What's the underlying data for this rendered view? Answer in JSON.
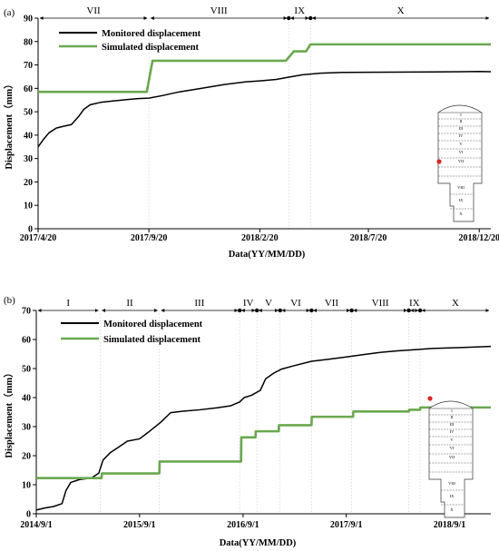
{
  "chart_data": [
    {
      "panel_label": "(a)",
      "type": "line",
      "xlabel": "Data(YY/MM/DD)",
      "ylabel": "Displacement（mm）",
      "ylim": [
        0,
        90
      ],
      "yticks": [
        "0",
        "10",
        "20",
        "30",
        "40",
        "50",
        "60",
        "70",
        "80",
        "90"
      ],
      "xlim": [
        "2017-04-20",
        "2019-01-05"
      ],
      "xticks": [
        {
          "date": "2017-04-20",
          "label": "2017/4/20"
        },
        {
          "date": "2017-09-20",
          "label": "2017/9/20"
        },
        {
          "date": "2018-02-20",
          "label": "2018/2/20"
        },
        {
          "date": "2018-07-20",
          "label": "2018/7/20"
        },
        {
          "date": "2018-12-20",
          "label": "2018/12/20"
        }
      ],
      "grid": false,
      "legend_position": "top-left",
      "stages": [
        {
          "label": "VII",
          "start": "2017-04-20",
          "end": "2017-09-20"
        },
        {
          "label": "VIII",
          "start": "2017-09-20",
          "end": "2018-04-01"
        },
        {
          "label": "IX",
          "start": "2018-04-01",
          "end": "2018-05-01"
        },
        {
          "label": "X",
          "start": "2018-05-01",
          "end": "2019-01-05"
        }
      ],
      "series": [
        {
          "name": "Monitored displacement",
          "color": "#000000",
          "points": [
            [
              "2017-04-20",
              35
            ],
            [
              "2017-04-27",
              38
            ],
            [
              "2017-05-05",
              41
            ],
            [
              "2017-05-15",
              43
            ],
            [
              "2017-05-25",
              43.8
            ],
            [
              "2017-06-05",
              44.5
            ],
            [
              "2017-06-15",
              48
            ],
            [
              "2017-06-22",
              51
            ],
            [
              "2017-07-01",
              53
            ],
            [
              "2017-07-15",
              54
            ],
            [
              "2017-08-01",
              54.6
            ],
            [
              "2017-08-20",
              55.2
            ],
            [
              "2017-09-05",
              55.6
            ],
            [
              "2017-09-20",
              55.8
            ],
            [
              "2017-10-10",
              57
            ],
            [
              "2017-11-01",
              58.5
            ],
            [
              "2017-12-01",
              60
            ],
            [
              "2018-01-01",
              61.6
            ],
            [
              "2018-02-01",
              62.8
            ],
            [
              "2018-02-20",
              63.2
            ],
            [
              "2018-03-15",
              63.8
            ],
            [
              "2018-04-01",
              64.8
            ],
            [
              "2018-04-20",
              65.8
            ],
            [
              "2018-05-15",
              66.5
            ],
            [
              "2018-06-15",
              66.8
            ],
            [
              "2018-08-15",
              66.9
            ],
            [
              "2018-10-15",
              67
            ],
            [
              "2018-12-20",
              67.2
            ],
            [
              "2019-01-05",
              67.1
            ]
          ]
        },
        {
          "name": "Simulated displacement",
          "color": "#6aa84f",
          "points": [
            [
              "2017-04-20",
              58.5
            ],
            [
              "2017-09-17",
              58.5
            ],
            [
              "2017-09-25",
              71.8
            ],
            [
              "2018-03-28",
              71.8
            ],
            [
              "2018-04-08",
              75.8
            ],
            [
              "2018-04-25",
              75.8
            ],
            [
              "2018-05-01",
              78.8
            ],
            [
              "2019-01-05",
              78.8
            ]
          ]
        }
      ]
    },
    {
      "panel_label": "(b)",
      "type": "line",
      "xlabel": "Data(YY/MM/DD)",
      "ylabel": "Displacement（mm）",
      "ylim": [
        0,
        70
      ],
      "yticks": [
        "0",
        "10",
        "20",
        "30",
        "40",
        "50",
        "60",
        "70"
      ],
      "xlim": [
        "2014-09-01",
        "2019-01-25"
      ],
      "xticks": [
        {
          "date": "2014-09-01",
          "label": "2014/9/1"
        },
        {
          "date": "2015-09-01",
          "label": "2015/9/1"
        },
        {
          "date": "2016-09-01",
          "label": "2016/9/1"
        },
        {
          "date": "2017-09-01",
          "label": "2017/9/1"
        },
        {
          "date": "2018-09-01",
          "label": "2018/9/1"
        }
      ],
      "grid": false,
      "legend_position": "top-left",
      "stages": [
        {
          "label": "I",
          "start": "2014-09-01",
          "end": "2015-04-15"
        },
        {
          "label": "II",
          "start": "2015-04-15",
          "end": "2015-11-10"
        },
        {
          "label": "III",
          "start": "2015-11-10",
          "end": "2016-08-20"
        },
        {
          "label": "IV",
          "start": "2016-08-20",
          "end": "2016-10-20"
        },
        {
          "label": "V",
          "start": "2016-10-20",
          "end": "2017-01-10"
        },
        {
          "label": "VI",
          "start": "2017-01-10",
          "end": "2017-05-01"
        },
        {
          "label": "VII",
          "start": "2017-05-01",
          "end": "2017-09-20"
        },
        {
          "label": "VIII",
          "start": "2017-09-20",
          "end": "2018-04-10"
        },
        {
          "label": "IX",
          "start": "2018-04-10",
          "end": "2018-05-20"
        },
        {
          "label": "X",
          "start": "2018-05-20",
          "end": "2019-01-25"
        }
      ],
      "series": [
        {
          "name": "Monitored displacement",
          "color": "#000000",
          "points": [
            [
              "2014-09-01",
              1.3
            ],
            [
              "2014-10-01",
              2
            ],
            [
              "2014-11-01",
              2.5
            ],
            [
              "2014-12-01",
              3.5
            ],
            [
              "2014-12-15",
              8
            ],
            [
              "2015-01-01",
              10.8
            ],
            [
              "2015-02-01",
              11.8
            ],
            [
              "2015-03-15",
              12.3
            ],
            [
              "2015-04-10",
              14
            ],
            [
              "2015-04-25",
              18.5
            ],
            [
              "2015-05-20",
              21
            ],
            [
              "2015-06-20",
              23
            ],
            [
              "2015-07-20",
              25
            ],
            [
              "2015-09-01",
              25.8
            ],
            [
              "2015-10-01",
              28
            ],
            [
              "2015-11-15",
              31.5
            ],
            [
              "2015-12-20",
              34.8
            ],
            [
              "2016-02-01",
              35.3
            ],
            [
              "2016-04-01",
              35.8
            ],
            [
              "2016-06-01",
              36.5
            ],
            [
              "2016-07-20",
              37.2
            ],
            [
              "2016-08-20",
              38.5
            ],
            [
              "2016-09-05",
              40
            ],
            [
              "2016-10-01",
              40.8
            ],
            [
              "2016-11-01",
              42.5
            ],
            [
              "2016-11-20",
              46.5
            ],
            [
              "2016-12-20",
              48.5
            ],
            [
              "2017-01-15",
              49.8
            ],
            [
              "2017-03-01",
              51
            ],
            [
              "2017-05-01",
              52.5
            ],
            [
              "2017-07-01",
              53.2
            ],
            [
              "2017-09-01",
              54
            ],
            [
              "2017-11-01",
              54.8
            ],
            [
              "2018-01-01",
              55.6
            ],
            [
              "2018-03-01",
              56.1
            ],
            [
              "2018-05-01",
              56.5
            ],
            [
              "2018-07-01",
              56.9
            ],
            [
              "2018-09-01",
              57.1
            ],
            [
              "2018-11-01",
              57.3
            ],
            [
              "2019-01-25",
              57.6
            ]
          ]
        },
        {
          "name": "Simulated displacement",
          "color": "#6aa84f",
          "points": [
            [
              "2014-09-01",
              12.3
            ],
            [
              "2015-04-20",
              12.3
            ],
            [
              "2015-04-21",
              13.9
            ],
            [
              "2015-11-10",
              13.9
            ],
            [
              "2015-11-11",
              18
            ],
            [
              "2016-08-25",
              18
            ],
            [
              "2016-08-26",
              26.3
            ],
            [
              "2016-10-15",
              26.3
            ],
            [
              "2016-10-16",
              28.4
            ],
            [
              "2017-01-05",
              28.4
            ],
            [
              "2017-01-06",
              30.5
            ],
            [
              "2017-05-01",
              30.5
            ],
            [
              "2017-05-02",
              33.4
            ],
            [
              "2017-09-25",
              33.4
            ],
            [
              "2017-09-26",
              35.2
            ],
            [
              "2018-04-10",
              35.2
            ],
            [
              "2018-04-11",
              35.8
            ],
            [
              "2018-05-20",
              35.8
            ],
            [
              "2018-05-21",
              36.6
            ],
            [
              "2019-01-25",
              36.6
            ]
          ]
        }
      ]
    }
  ],
  "inset": {
    "section_labels": [
      "I",
      "II",
      "III",
      "IV",
      "V",
      "VI",
      "VII",
      "VIII",
      "IX",
      "X"
    ],
    "marker_color": "#d62728"
  }
}
